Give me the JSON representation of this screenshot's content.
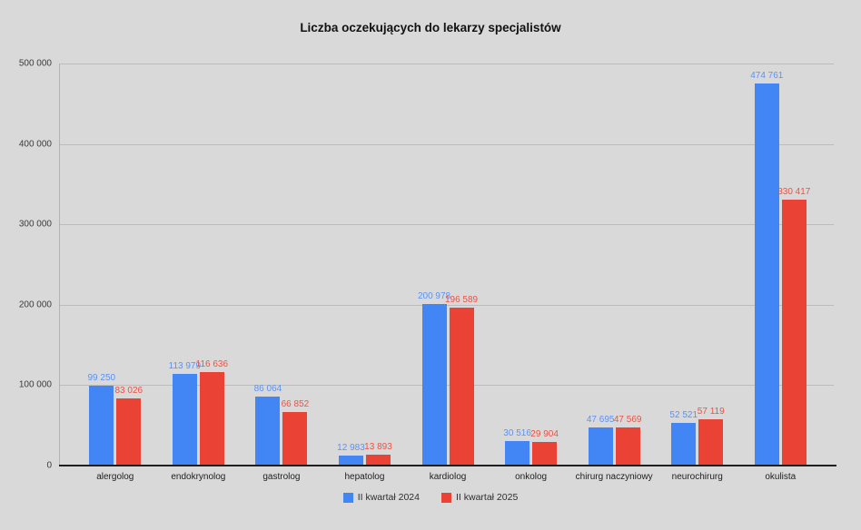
{
  "page": {
    "background_color": "#d9d9d9"
  },
  "chart_data": {
    "type": "bar",
    "title": "Liczba oczekujących do lekarzy specjalistów",
    "categories": [
      "alergolog",
      "endokrynolog",
      "gastrolog",
      "hepatolog",
      "kardiolog",
      "onkolog",
      "chirurg naczyniowy",
      "neurochirurg",
      "okulista"
    ],
    "series": [
      {
        "name": "II kwartał 2024",
        "color": "#4285f4",
        "label_color": "#5b92f5",
        "values": [
          99250,
          113979,
          86064,
          12983,
          200978,
          30516,
          47695,
          52521,
          474761
        ]
      },
      {
        "name": "II kwartał 2025",
        "color": "#ea4335",
        "label_color": "#ea5345",
        "values": [
          83026,
          116636,
          66852,
          13893,
          196589,
          29904,
          47569,
          57119,
          330417
        ]
      }
    ],
    "xlabel": "",
    "ylabel": "",
    "ylim": [
      0,
      500000
    ],
    "yticks": [
      0,
      100000,
      200000,
      300000,
      400000,
      500000
    ],
    "ytick_labels": [
      "0",
      "100 000",
      "200 000",
      "300 000",
      "400 000",
      "500 000"
    ],
    "grid": true,
    "gridline_color": "#bcbcbc",
    "legend_position": "bottom",
    "number_format": "space-thousands",
    "annotations": "values shown above each bar"
  }
}
